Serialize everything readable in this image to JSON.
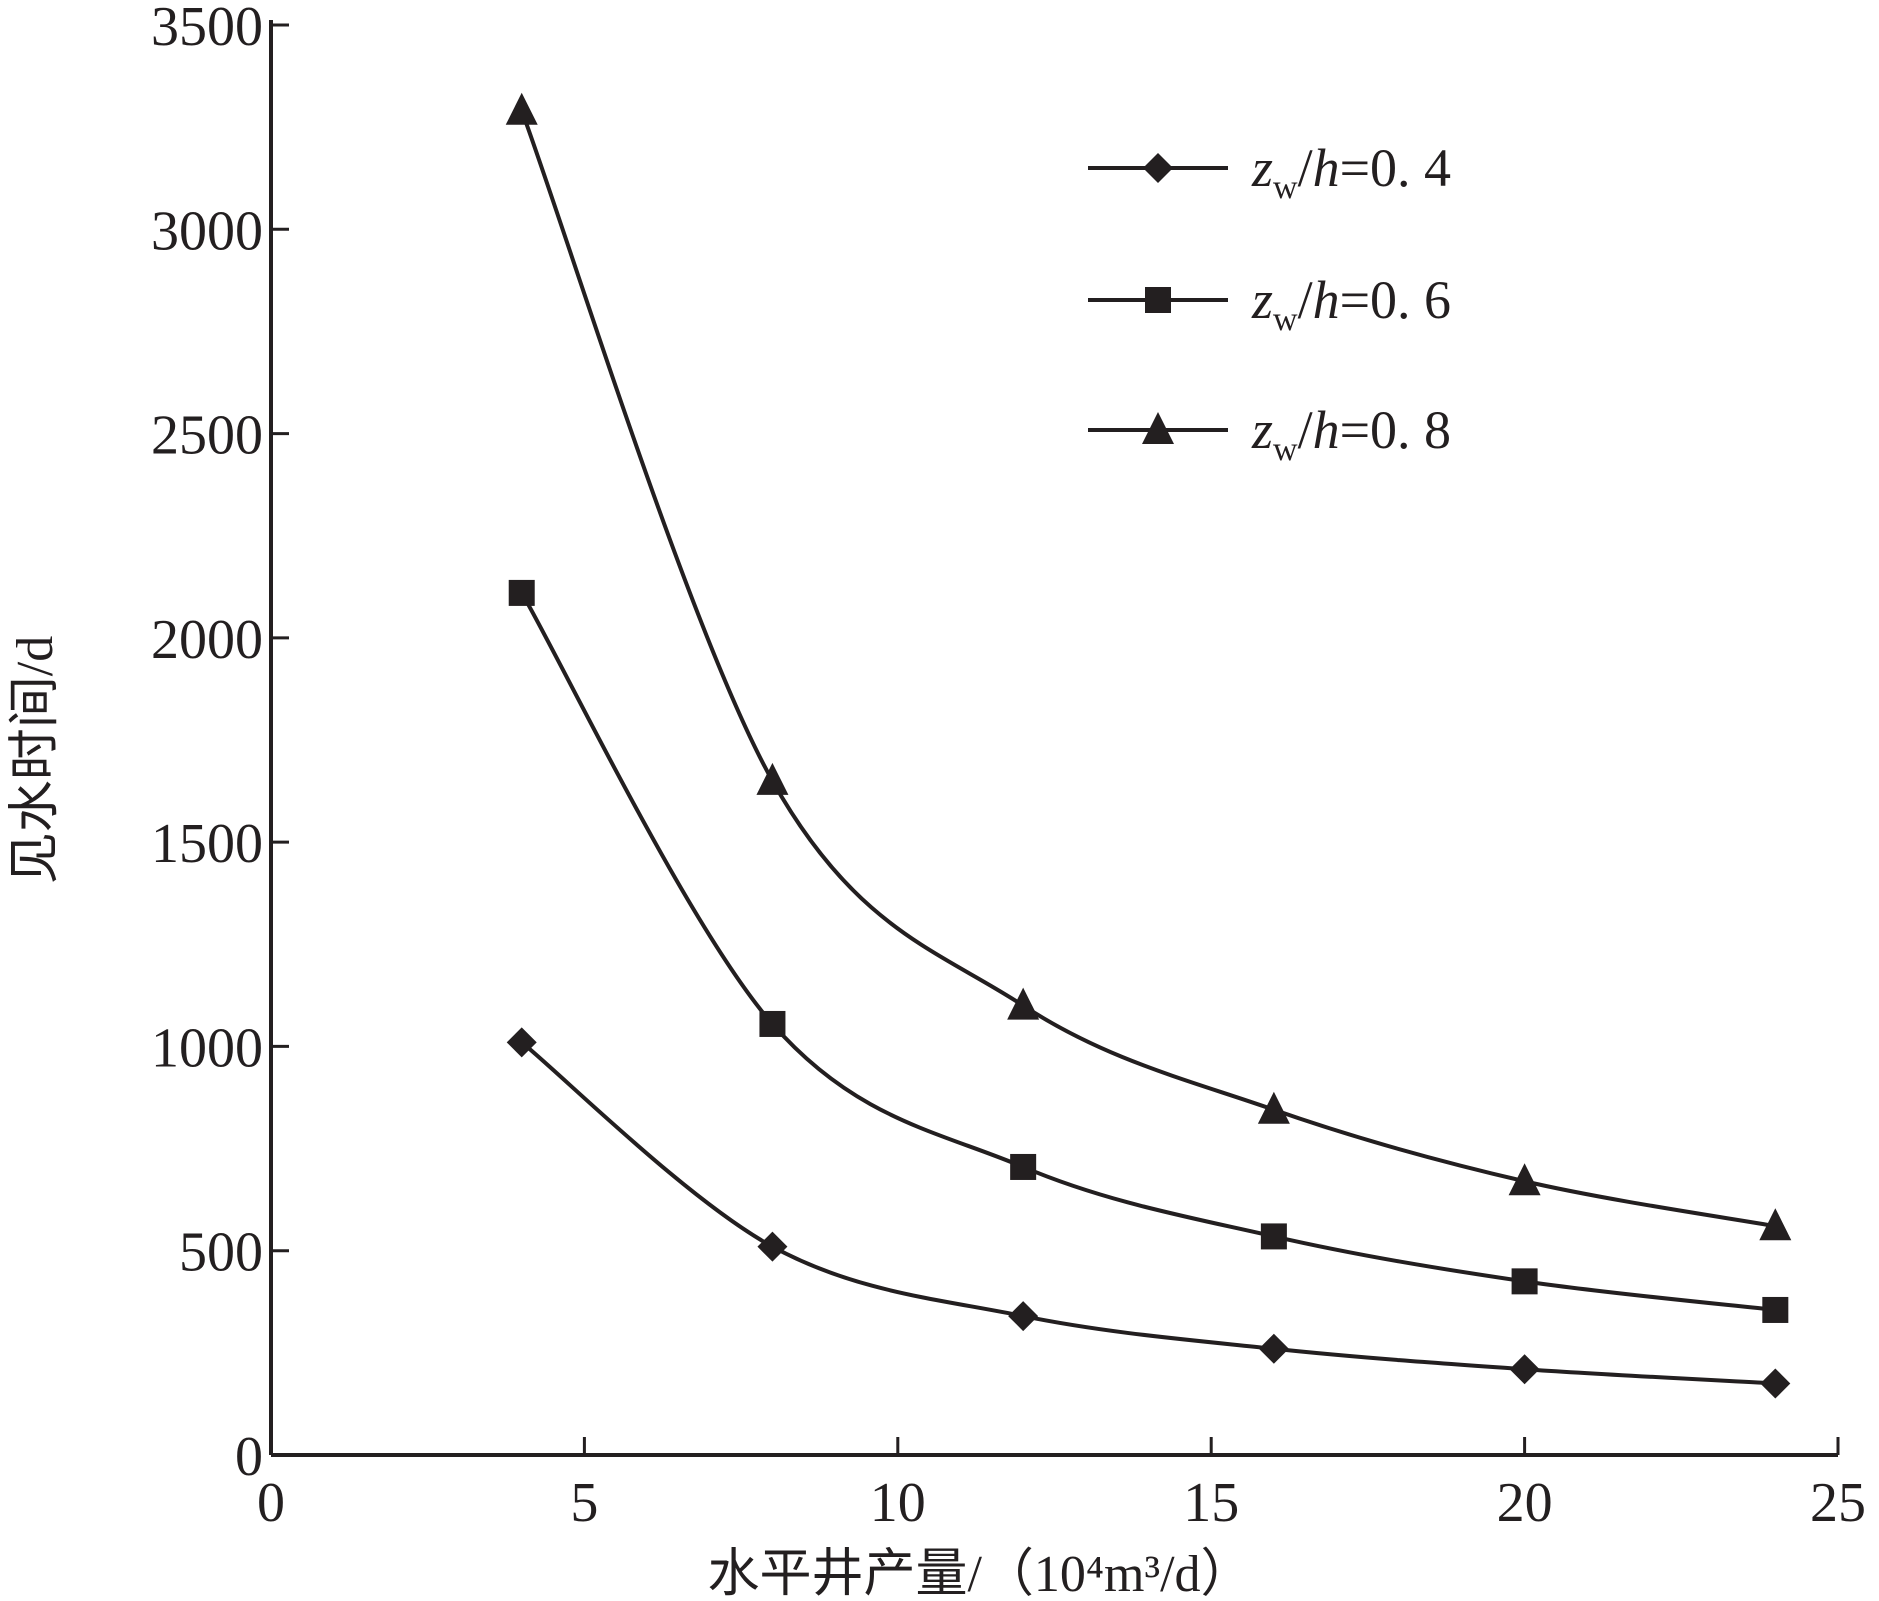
{
  "chart_data": {
    "type": "line",
    "xlabel": "水平井产量/（10⁴m³/d）",
    "ylabel": "见水时间/d",
    "xlim": [
      0,
      25
    ],
    "ylim": [
      0,
      3500
    ],
    "xticks": [
      "0",
      "5",
      "10",
      "15",
      "20",
      "25"
    ],
    "yticks": [
      "0",
      "500",
      "1000",
      "1500",
      "2000",
      "2500",
      "3000",
      "3500"
    ],
    "x": [
      4,
      8,
      12,
      16,
      20,
      24
    ],
    "series": [
      {
        "name": "zw/h=0. 4",
        "marker": "diamond",
        "values": [
          1010,
          510,
          340,
          260,
          210,
          175
        ]
      },
      {
        "name": "zw/h=0. 6",
        "marker": "square",
        "values": [
          2110,
          1055,
          705,
          535,
          425,
          355
        ]
      },
      {
        "name": "zw/h=0. 8",
        "marker": "triangle",
        "values": [
          3290,
          1650,
          1100,
          845,
          670,
          560
        ]
      }
    ],
    "legend": {
      "position": "top-right",
      "items": [
        {
          "var": "z",
          "sub": "w",
          "slash": "/",
          "h": "h",
          "eq": "=0. 4"
        },
        {
          "var": "z",
          "sub": "w",
          "slash": "/",
          "h": "h",
          "eq": "=0. 6"
        },
        {
          "var": "z",
          "sub": "w",
          "slash": "/",
          "h": "h",
          "eq": "=0. 8"
        }
      ]
    },
    "grid": false,
    "line_color": "#231f20"
  }
}
